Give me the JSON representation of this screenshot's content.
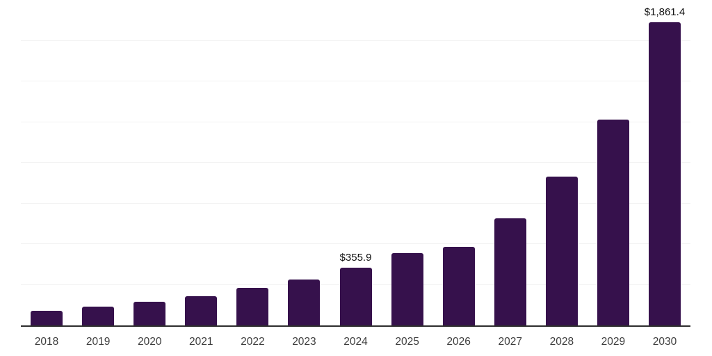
{
  "chart_data": {
    "type": "bar",
    "title": "",
    "xlabel": "",
    "ylabel": "",
    "categories": [
      "2018",
      "2019",
      "2020",
      "2021",
      "2022",
      "2023",
      "2024",
      "2025",
      "2026",
      "2027",
      "2028",
      "2029",
      "2030"
    ],
    "values": [
      88,
      117,
      146,
      178,
      230,
      284,
      355.9,
      444,
      482,
      660,
      913,
      1265,
      1861.4
    ],
    "data_labels": [
      "",
      "",
      "",
      "",
      "",
      "",
      "$355.9",
      "",
      "",
      "",
      "",
      "",
      "$1,861.4"
    ],
    "ylim": [
      0,
      2000
    ],
    "gridline_step": 250,
    "grid": true,
    "legend": false,
    "colors": {
      "bar": "#36114C",
      "gridline": "#F2F2F2",
      "axis": "#2D2D2D",
      "tick_label": "#3D3D3D",
      "data_label": "#111111"
    }
  }
}
